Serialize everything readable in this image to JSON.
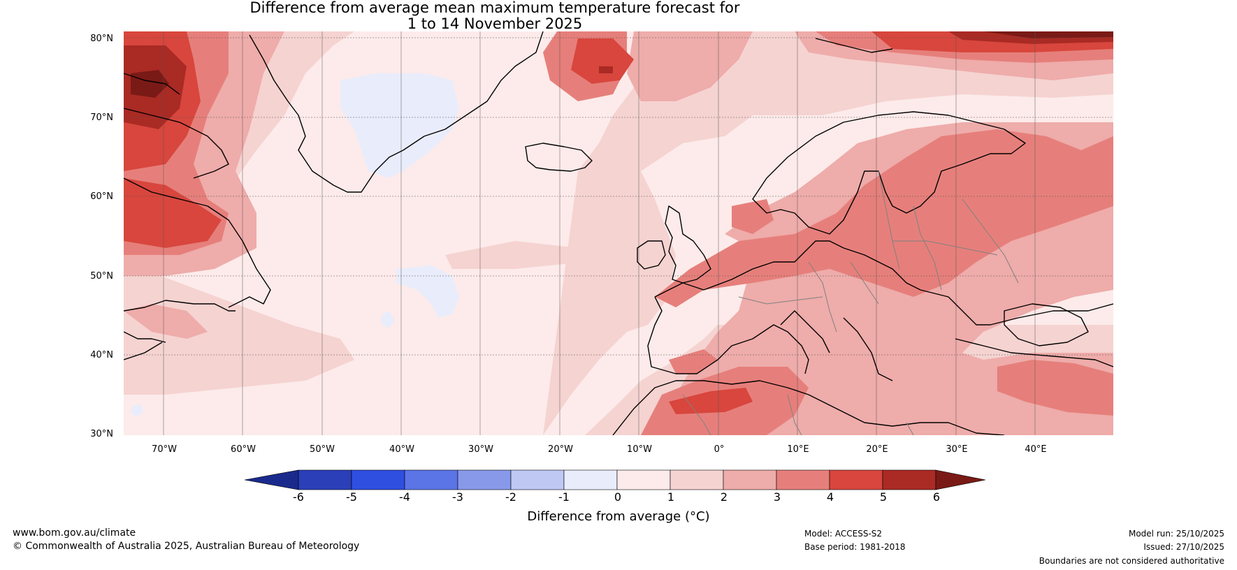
{
  "title": {
    "line1": "Difference from average mean maximum temperature forecast for",
    "line2": "1 to 14 November 2025"
  },
  "map": {
    "lat_labels": [
      "80°N",
      "70°N",
      "60°N",
      "50°N",
      "40°N",
      "30°N"
    ],
    "lon_labels": [
      "70°W",
      "60°W",
      "50°W",
      "40°W",
      "30°W",
      "20°W",
      "10°W",
      "0°",
      "10°E",
      "20°E",
      "30°E",
      "40°E"
    ],
    "lat_range": [
      30,
      80
    ],
    "lon_range": [
      -75,
      50
    ]
  },
  "colorbar": {
    "ticks": [
      "-6",
      "-5",
      "-4",
      "-3",
      "-2",
      "-1",
      "0",
      "1",
      "2",
      "3",
      "4",
      "5",
      "6"
    ],
    "label": "Difference from average (°C)",
    "colors": [
      "#1a2a8c",
      "#2a3fb8",
      "#2f4fe0",
      "#5b74e6",
      "#8899ea",
      "#bfc8f3",
      "#e9ecfb",
      "#fcebea",
      "#f5d3d1",
      "#eeacaa",
      "#e67f7b",
      "#d8463d",
      "#aa2a24",
      "#7a1a16"
    ]
  },
  "palette": {
    "land_line": "#000000",
    "border_line": "#808080",
    "grid": "#555555"
  },
  "footer": {
    "website": "www.bom.gov.au/climate",
    "copyright": "© Commonwealth of Australia 2025, Australian Bureau of Meteorology",
    "model": "Model: ACCESS-S2",
    "base_period": "Base period: 1981-2018",
    "model_run": "Model run: 25/10/2025",
    "issued": "Issued: 27/10/2025",
    "disclaimer": "Boundaries are not considered authoritative"
  }
}
